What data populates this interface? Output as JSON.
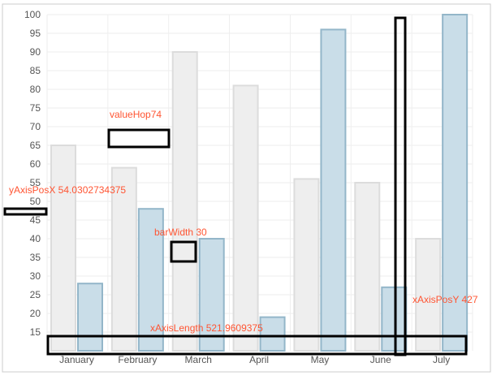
{
  "chart_data": {
    "type": "bar",
    "categories": [
      "January",
      "February",
      "March",
      "April",
      "May",
      "June",
      "July"
    ],
    "series": [
      {
        "name": "",
        "values": [
          65,
          59,
          90,
          81,
          56,
          55,
          40
        ],
        "fill": "#eeeeee",
        "stroke": "#dcdcdc"
      },
      {
        "name": "",
        "values": [
          28,
          48,
          40,
          19,
          96,
          27,
          100
        ],
        "fill": "#c9dde8",
        "stroke": "#93b6c9"
      }
    ],
    "y_ticks": [
      15,
      20,
      25,
      30,
      35,
      40,
      45,
      50,
      55,
      60,
      65,
      70,
      75,
      80,
      85,
      90,
      95,
      100
    ],
    "ylim": [
      10,
      100
    ],
    "grid": true,
    "title": "",
    "xlabel": "",
    "ylabel": ""
  },
  "annotations": {
    "value_hop": "valueHop74",
    "y_axis_pos_x": "yAxisPosX  54.0302734375",
    "bar_width": "barWidth 30",
    "x_axis_length": "xAxisLength 521.9609375",
    "x_axis_pos_y": "xAxisPosY 427"
  },
  "colors": {
    "annotation_text": "#ff5533",
    "highlight_box": "#000000",
    "grid": "#eeeeee",
    "tick_text": "#555555",
    "frame": "#cccccc"
  }
}
